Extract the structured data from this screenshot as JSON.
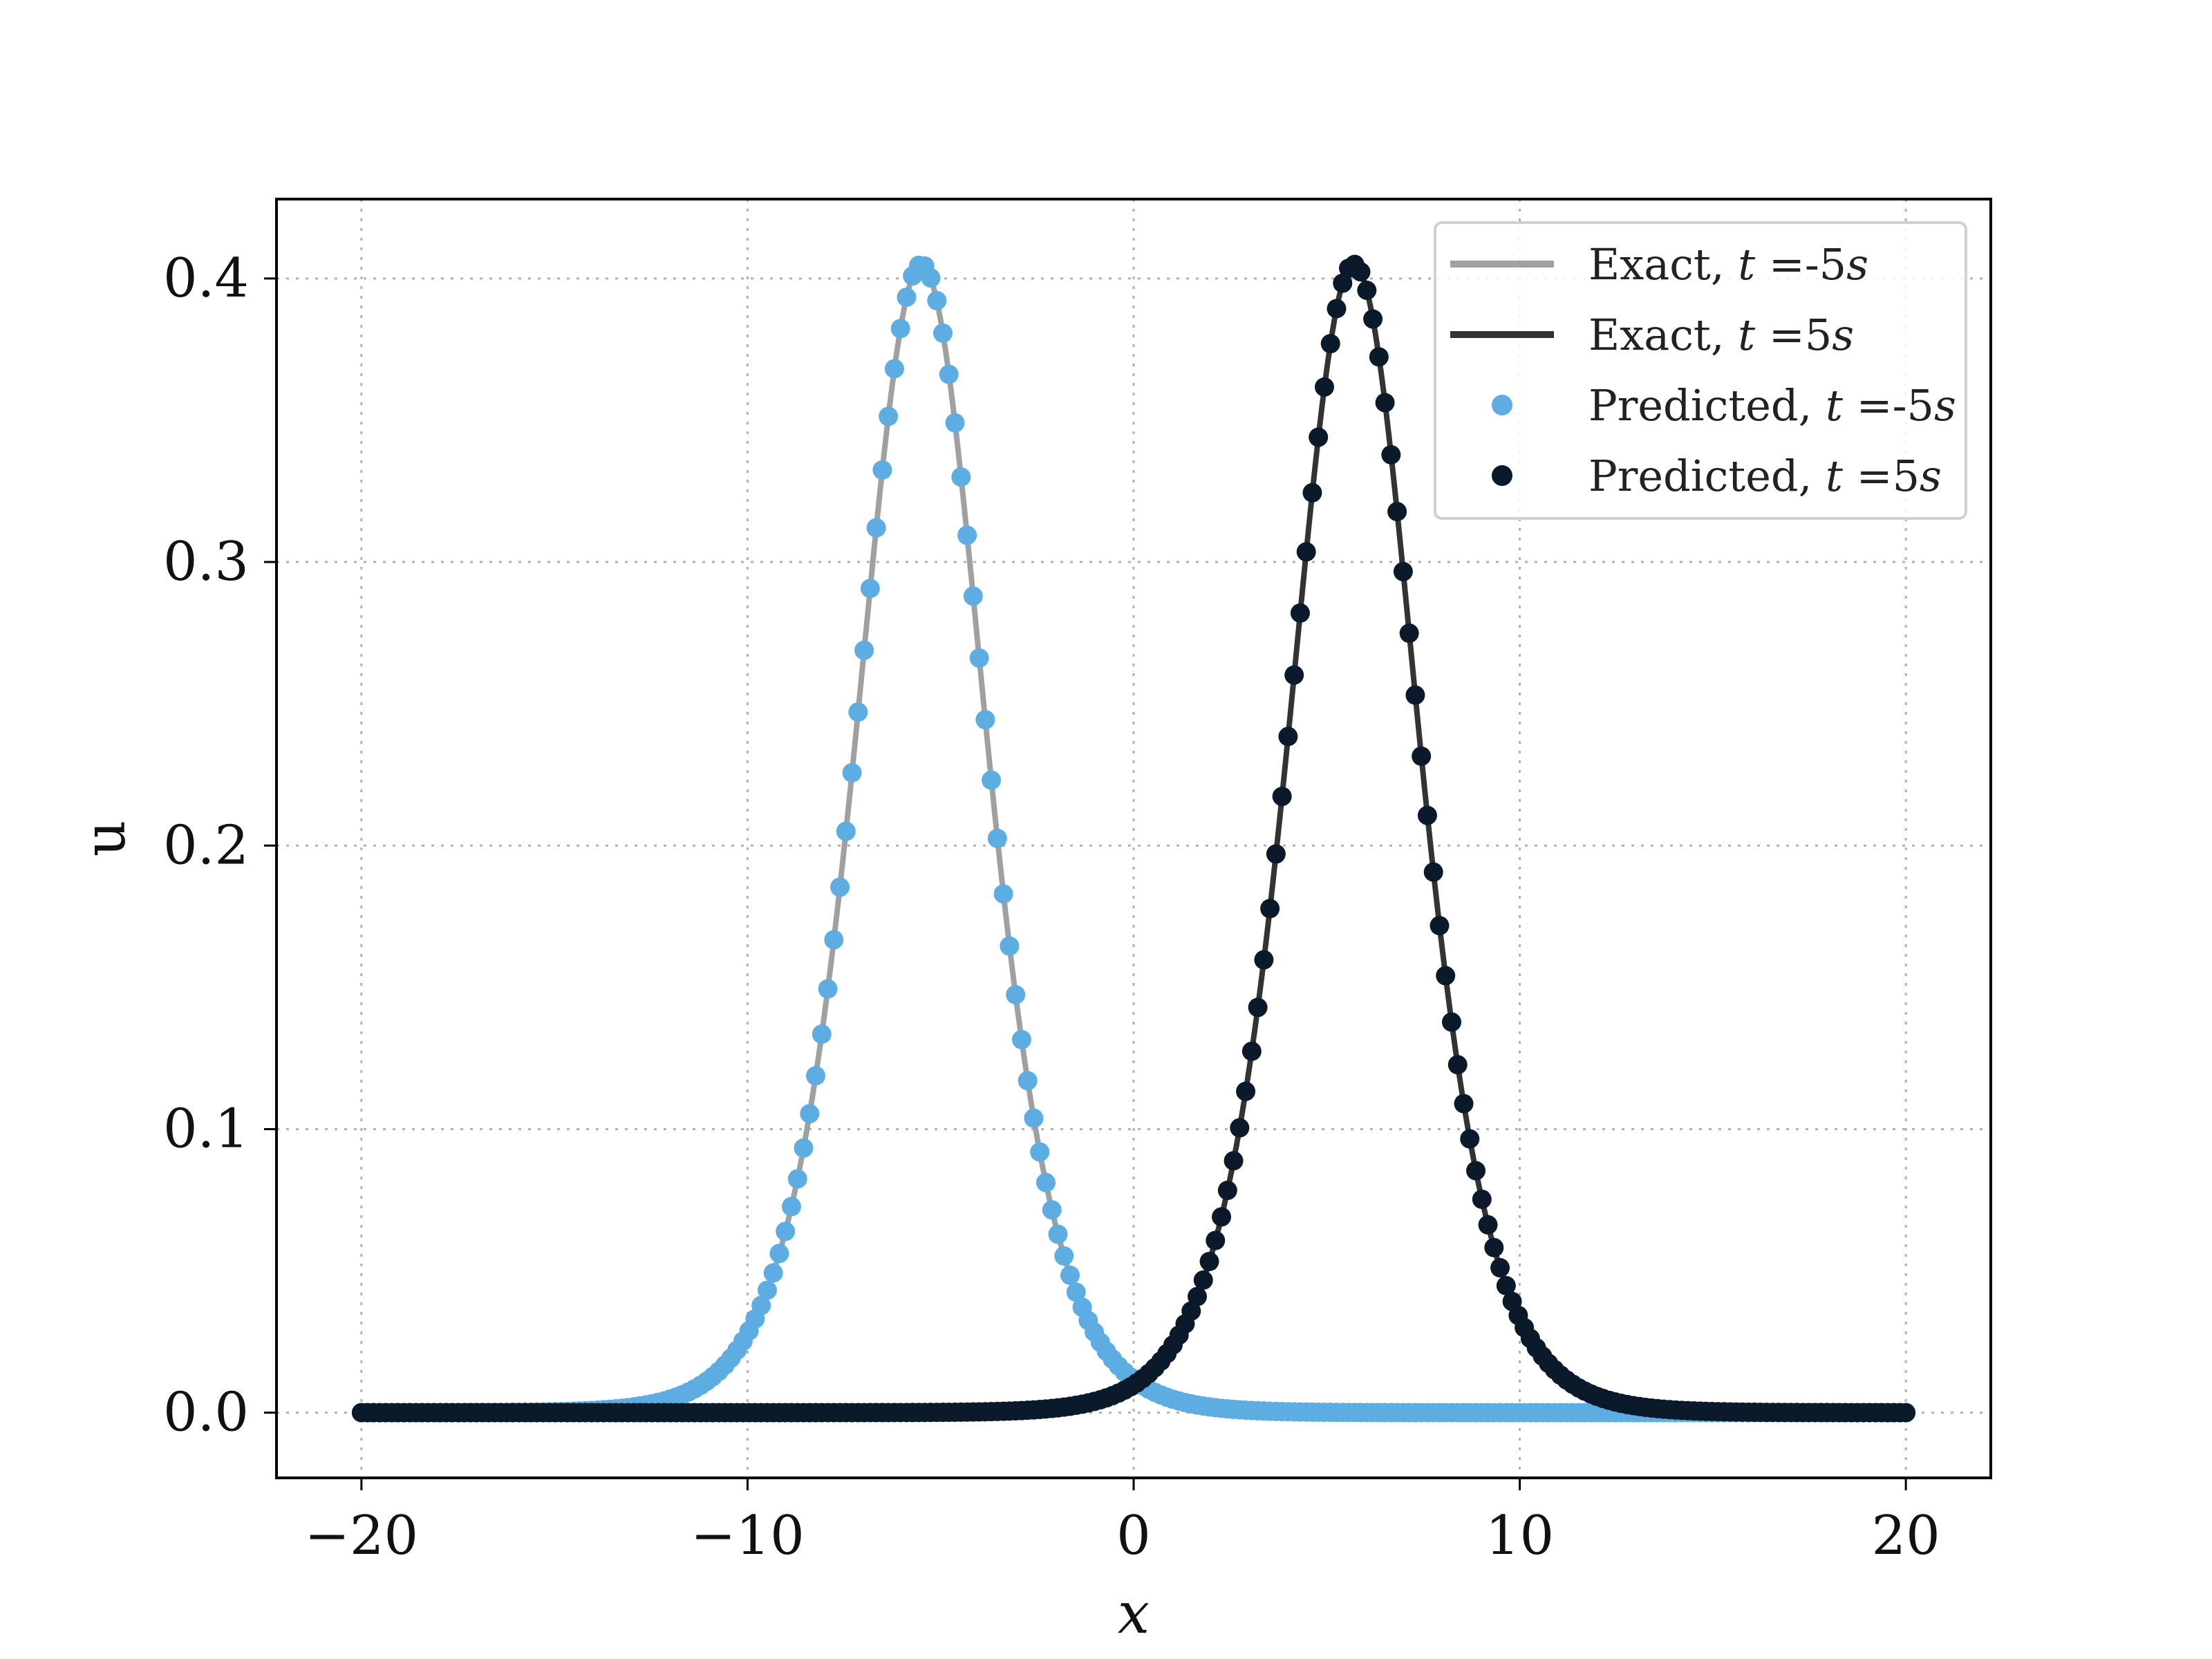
{
  "chart_data": {
    "type": "scatter",
    "xlabel": "x",
    "ylabel": "u",
    "xlim": [
      -22.2,
      22.2
    ],
    "ylim": [
      -0.023,
      0.428
    ],
    "xticks": [
      -20,
      -10,
      0,
      10,
      20
    ],
    "xtick_labels": [
      "−20",
      "−10",
      "0",
      "10",
      "20"
    ],
    "yticks": [
      0.0,
      0.1,
      0.2,
      0.3,
      0.4
    ],
    "ytick_labels": [
      "0.0",
      "0.1",
      "0.2",
      "0.3",
      "0.4"
    ],
    "grid": true,
    "legend_position": "top-right",
    "x_range": [
      -20,
      20
    ],
    "sample_count": 256,
    "series": [
      {
        "name_parts": [
          "Exact, ",
          "t",
          " =-5",
          "s"
        ],
        "kind": "line",
        "color": "#a0a0a0",
        "amplitude": 0.405,
        "center": -5.5,
        "width": 2.236
      },
      {
        "name_parts": [
          "Exact, ",
          "t",
          " =5",
          "s"
        ],
        "kind": "line",
        "color": "#333333",
        "amplitude": 0.405,
        "center": 5.7,
        "width": 2.236
      },
      {
        "name_parts": [
          "Predicted, ",
          "t",
          " =-5",
          "s"
        ],
        "kind": "scatter",
        "color": "#5dade2",
        "amplitude": 0.405,
        "center": -5.5,
        "width": 2.236
      },
      {
        "name_parts": [
          "Predicted, ",
          "t",
          " =5",
          "s"
        ],
        "kind": "scatter",
        "color": "#0b1a2a",
        "amplitude": 0.405,
        "center": 5.7,
        "width": 2.236
      }
    ]
  }
}
